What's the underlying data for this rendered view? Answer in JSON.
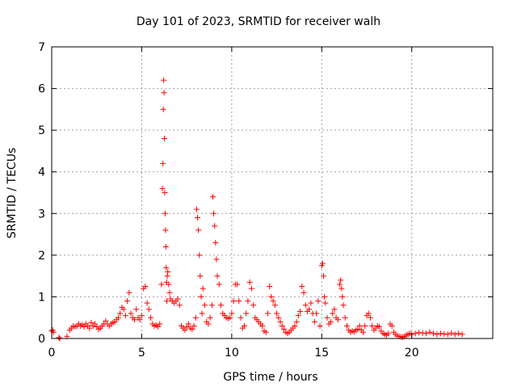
{
  "chart_data": {
    "type": "scatter",
    "title": "Day 101 of 2023, SRMTID for receiver walh",
    "xlabel": "GPS time / hours",
    "ylabel": "SRMTID / TECUs",
    "xlim": [
      0,
      24.5
    ],
    "ylim": [
      0,
      7
    ],
    "xticks": [
      0,
      5,
      10,
      15,
      20
    ],
    "xtick_labels": [
      "0",
      "5",
      "10",
      "15",
      "20"
    ],
    "yticks": [
      0,
      1,
      2,
      3,
      4,
      5,
      6,
      7
    ],
    "ytick_labels": [
      "0",
      "1",
      "2",
      "3",
      "4",
      "5",
      "6",
      "7"
    ],
    "grid": true,
    "marker": "+",
    "series": [
      {
        "name": "SRMTID",
        "color": "#ff0000",
        "x": [
          0.0,
          0.05,
          0.1,
          0.4,
          0.45,
          0.85,
          1.0,
          1.1,
          1.2,
          1.3,
          1.4,
          1.5,
          1.6,
          1.7,
          1.8,
          1.9,
          2.0,
          2.1,
          2.2,
          2.3,
          2.4,
          2.5,
          2.6,
          2.7,
          2.8,
          2.9,
          3.0,
          3.1,
          3.2,
          3.3,
          3.4,
          3.5,
          3.6,
          3.7,
          3.8,
          3.9,
          4.0,
          4.1,
          4.2,
          4.3,
          4.4,
          4.5,
          4.6,
          4.7,
          4.8,
          4.9,
          5.0,
          5.1,
          5.2,
          5.3,
          5.4,
          5.5,
          5.6,
          5.7,
          5.8,
          5.9,
          6.0,
          6.1,
          6.15,
          6.18,
          6.2,
          6.22,
          6.24,
          6.26,
          6.28,
          6.3,
          6.32,
          6.34,
          6.36,
          6.38,
          6.4,
          6.42,
          6.45,
          6.5,
          6.55,
          6.6,
          6.7,
          6.8,
          6.9,
          7.0,
          7.1,
          7.2,
          7.3,
          7.4,
          7.5,
          7.6,
          7.7,
          7.8,
          7.9,
          8.0,
          8.05,
          8.1,
          8.15,
          8.2,
          8.25,
          8.3,
          8.35,
          8.4,
          8.5,
          8.6,
          8.7,
          8.8,
          8.9,
          8.95,
          9.0,
          9.05,
          9.1,
          9.15,
          9.2,
          9.3,
          9.4,
          9.5,
          9.6,
          9.7,
          9.8,
          9.9,
          10.0,
          10.1,
          10.2,
          10.3,
          10.4,
          10.5,
          10.6,
          10.7,
          10.8,
          10.9,
          11.0,
          11.1,
          11.2,
          11.3,
          11.4,
          11.5,
          11.6,
          11.7,
          11.8,
          11.9,
          12.0,
          12.1,
          12.2,
          12.3,
          12.4,
          12.5,
          12.6,
          12.7,
          12.8,
          12.9,
          13.0,
          13.1,
          13.2,
          13.3,
          13.4,
          13.5,
          13.6,
          13.7,
          13.8,
          13.9,
          14.0,
          14.1,
          14.2,
          14.3,
          14.4,
          14.5,
          14.6,
          14.7,
          14.8,
          14.9,
          15.0,
          15.05,
          15.1,
          15.15,
          15.2,
          15.3,
          15.4,
          15.5,
          15.6,
          15.7,
          15.8,
          15.9,
          16.0,
          16.05,
          16.1,
          16.15,
          16.2,
          16.3,
          16.4,
          16.5,
          16.6,
          16.7,
          16.8,
          16.9,
          17.0,
          17.1,
          17.2,
          17.3,
          17.4,
          17.5,
          17.6,
          17.7,
          17.8,
          17.9,
          18.0,
          18.1,
          18.2,
          18.3,
          18.4,
          18.5,
          18.6,
          18.7,
          18.8,
          18.9,
          19.0,
          19.1,
          19.2,
          19.3,
          19.4,
          19.5,
          19.6,
          19.7,
          19.8,
          19.9,
          20.0,
          20.2,
          20.4,
          20.6,
          20.8,
          21.0,
          21.2,
          21.4,
          21.6,
          21.8,
          22.0,
          22.2,
          22.4,
          22.6,
          22.8
        ],
        "y": [
          0.18,
          0.2,
          0.15,
          0.02,
          0.0,
          0.05,
          0.2,
          0.25,
          0.3,
          0.28,
          0.3,
          0.35,
          0.3,
          0.33,
          0.28,
          0.35,
          0.3,
          0.25,
          0.38,
          0.3,
          0.35,
          0.28,
          0.22,
          0.25,
          0.3,
          0.35,
          0.42,
          0.35,
          0.3,
          0.35,
          0.38,
          0.4,
          0.45,
          0.5,
          0.6,
          0.75,
          0.7,
          0.55,
          0.9,
          1.1,
          0.6,
          0.5,
          0.45,
          0.7,
          0.5,
          0.45,
          0.55,
          1.2,
          1.25,
          0.85,
          0.7,
          0.5,
          0.35,
          0.3,
          0.32,
          0.28,
          0.35,
          1.3,
          3.6,
          4.2,
          5.5,
          6.2,
          5.9,
          4.8,
          3.5,
          3.0,
          2.6,
          2.2,
          1.7,
          1.35,
          0.9,
          1.5,
          1.6,
          1.3,
          1.1,
          0.95,
          0.9,
          0.85,
          0.9,
          0.95,
          0.8,
          0.3,
          0.25,
          0.2,
          0.28,
          0.35,
          0.25,
          0.22,
          0.3,
          0.5,
          3.1,
          2.9,
          2.6,
          2.0,
          1.5,
          1.0,
          0.6,
          1.2,
          0.8,
          0.4,
          0.35,
          0.5,
          0.8,
          3.4,
          3.0,
          2.7,
          2.3,
          1.9,
          1.5,
          1.3,
          0.8,
          0.6,
          0.55,
          0.5,
          0.48,
          0.5,
          0.6,
          0.9,
          1.3,
          1.3,
          0.9,
          0.5,
          0.25,
          0.3,
          0.6,
          0.9,
          1.35,
          1.2,
          0.8,
          0.5,
          0.45,
          0.4,
          0.35,
          0.3,
          0.18,
          0.15,
          0.6,
          1.25,
          1.0,
          0.9,
          0.8,
          0.6,
          0.5,
          0.4,
          0.3,
          0.22,
          0.15,
          0.12,
          0.15,
          0.2,
          0.25,
          0.3,
          0.4,
          0.55,
          0.65,
          1.25,
          1.1,
          0.8,
          0.65,
          0.7,
          0.85,
          0.6,
          0.4,
          0.6,
          0.9,
          0.3,
          1.75,
          1.8,
          1.5,
          1.0,
          0.85,
          0.5,
          0.35,
          0.4,
          0.6,
          0.7,
          0.5,
          0.45,
          1.3,
          1.4,
          1.2,
          1.0,
          0.8,
          0.5,
          0.3,
          0.2,
          0.15,
          0.18,
          0.16,
          0.2,
          0.22,
          0.3,
          0.2,
          0.15,
          0.3,
          0.55,
          0.6,
          0.5,
          0.3,
          0.2,
          0.25,
          0.3,
          0.28,
          0.18,
          0.12,
          0.1,
          0.08,
          0.12,
          0.35,
          0.3,
          0.15,
          0.1,
          0.06,
          0.05,
          0.04,
          0.03,
          0.05,
          0.08,
          0.1,
          0.12,
          0.1,
          0.12,
          0.14,
          0.13,
          0.12,
          0.15,
          0.12,
          0.1,
          0.12,
          0.11,
          0.1,
          0.13,
          0.1,
          0.12,
          0.1
        ]
      }
    ]
  }
}
